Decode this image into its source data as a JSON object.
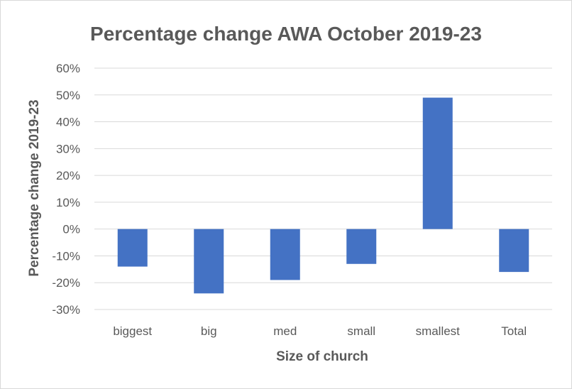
{
  "chart_data": {
    "type": "bar",
    "title": "Percentage change AWA October 2019-23",
    "xlabel": "Size of church",
    "ylabel": "Percentage change 2019-23",
    "categories": [
      "biggest",
      "big",
      "med",
      "small",
      "smallest",
      "Total"
    ],
    "series": [
      {
        "values": [
          -0.14,
          -0.24,
          -0.19,
          -0.13,
          0.49,
          -0.16
        ]
      }
    ],
    "ylim": [
      -0.3,
      0.6
    ],
    "yticks": [
      0.6,
      0.5,
      0.4,
      0.3,
      0.2,
      0.1,
      0.0,
      -0.1,
      -0.2,
      -0.3
    ],
    "ytick_labels": [
      "60%",
      "50%",
      "40%",
      "30%",
      "20%",
      "10%",
      "0%",
      "-10%",
      "-20%",
      "-30%"
    ],
    "grid": true,
    "legend": "none",
    "colors": {
      "bar": "#4472C4",
      "grid": "#D9D9D9",
      "text": "#595959"
    }
  }
}
